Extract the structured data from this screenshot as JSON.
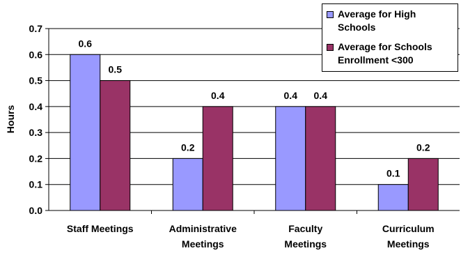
{
  "chart_data": {
    "type": "bar",
    "title": "",
    "xlabel": "",
    "ylabel": "Hours",
    "ylim": [
      0,
      0.7
    ],
    "yticks": [
      "0.0",
      "0.1",
      "0.2",
      "0.3",
      "0.4",
      "0.5",
      "0.6",
      "0.7"
    ],
    "categories": [
      [
        "Staff Meetings"
      ],
      [
        "Administrative",
        "Meetings"
      ],
      [
        "Faculty",
        "Meetings"
      ],
      [
        "Curriculum",
        "Meetings"
      ]
    ],
    "series": [
      {
        "name": "Average for High Schools",
        "legend_lines": [
          "Average for High",
          "Schools"
        ],
        "color": "#9999FF",
        "values": [
          0.6,
          0.2,
          0.4,
          0.1
        ],
        "labels": [
          "0.6",
          "0.2",
          "0.4",
          "0.1"
        ]
      },
      {
        "name": "Average for Schools Enrollment <300",
        "legend_lines": [
          "Average for Schools",
          "Enrollment <300"
        ],
        "color": "#993366",
        "values": [
          0.5,
          0.4,
          0.4,
          0.2
        ],
        "labels": [
          "0.5",
          "0.4",
          "0.4",
          "0.2"
        ]
      }
    ],
    "grid": true,
    "legend_position": "top-right"
  }
}
